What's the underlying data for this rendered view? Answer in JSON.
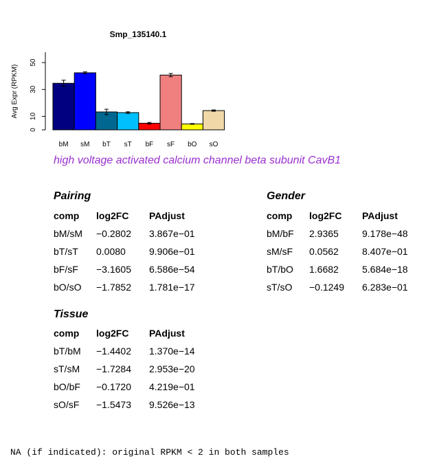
{
  "chart_data": {
    "type": "bar",
    "title": "Smp_135140.1",
    "ylabel": "Avg Expr (RPKM)",
    "xlabel": "",
    "ylim": [
      0,
      57.7
    ],
    "yticks": [
      0,
      10,
      30,
      50
    ],
    "categories": [
      "bM",
      "sM",
      "bT",
      "sT",
      "bF",
      "sF",
      "bO",
      "sO"
    ],
    "values": [
      34.6,
      42.4,
      13.3,
      12.8,
      4.9,
      40.7,
      4.4,
      14.3
    ],
    "errors": [
      2.3,
      0.7,
      2.0,
      0.6,
      0.6,
      1.2,
      0.3,
      0.5
    ],
    "colors": [
      "#000080",
      "#0000ff",
      "#006890",
      "#00bfff",
      "#ff0000",
      "#f08080",
      "#ffff00",
      "#f0d8a8"
    ]
  },
  "description": "high voltage activated calcium channel beta subunit CavB1",
  "description_color": "#9b30d0",
  "tables": {
    "pairing": {
      "title": "Pairing",
      "headers": [
        "comp",
        "log2FC",
        "PAdjust"
      ],
      "rows": [
        [
          "bM/sM",
          "−0.2802",
          "3.867e−01"
        ],
        [
          "bT/sT",
          "0.0080",
          "9.906e−01"
        ],
        [
          "bF/sF",
          "−3.1605",
          "6.586e−54"
        ],
        [
          "bO/sO",
          "−1.7852",
          "1.781e−17"
        ]
      ]
    },
    "gender": {
      "title": "Gender",
      "headers": [
        "comp",
        "log2FC",
        "PAdjust"
      ],
      "rows": [
        [
          "bM/bF",
          "2.9365",
          "9.178e−48"
        ],
        [
          "sM/sF",
          "0.0562",
          "8.407e−01"
        ],
        [
          "bT/bO",
          "1.6682",
          "5.684e−18"
        ],
        [
          "sT/sO",
          "−0.1249",
          "6.283e−01"
        ]
      ]
    },
    "tissue": {
      "title": "Tissue",
      "headers": [
        "comp",
        "log2FC",
        "PAdjust"
      ],
      "rows": [
        [
          "bT/bM",
          "−1.4402",
          "1.370e−14"
        ],
        [
          "sT/sM",
          "−1.7284",
          "2.953e−20"
        ],
        [
          "bO/bF",
          "−0.1720",
          "4.219e−01"
        ],
        [
          "sO/sF",
          "−1.5473",
          "9.526e−13"
        ]
      ]
    }
  },
  "footnote": "NA (if indicated): original RPKM < 2 in both samples"
}
